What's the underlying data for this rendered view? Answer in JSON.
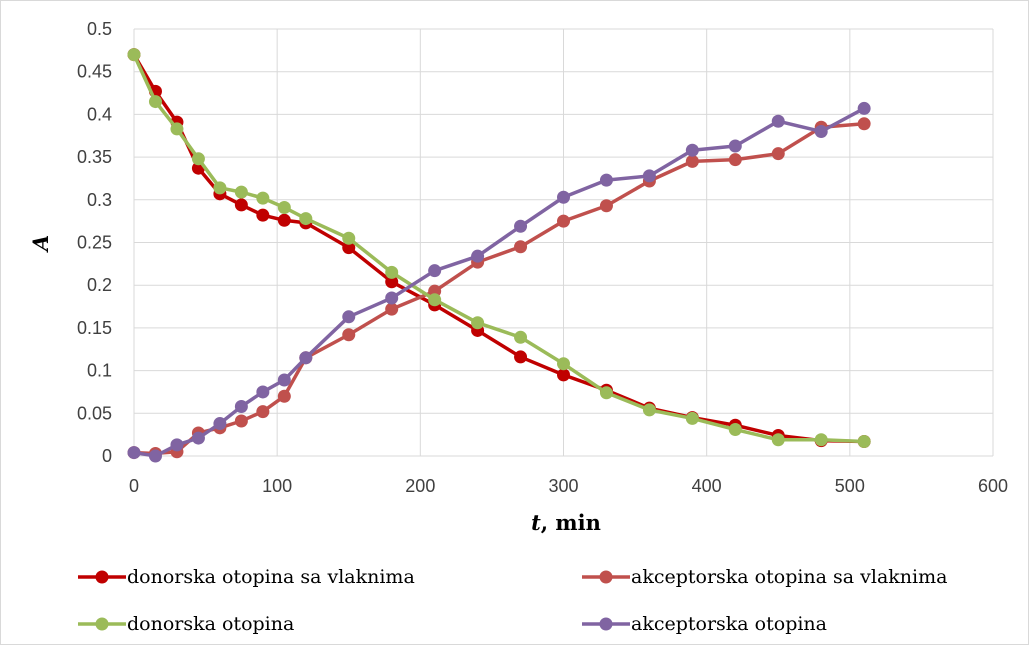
{
  "chart_data": {
    "type": "line",
    "title": "",
    "xlabel_italic": "t",
    "xlabel_rest": ", min",
    "ylabel": "A",
    "xlim": [
      0,
      600
    ],
    "ylim": [
      0,
      0.5
    ],
    "xticks": [
      0,
      100,
      200,
      300,
      400,
      500,
      600
    ],
    "yticks": [
      0,
      0.05,
      0.1,
      0.15,
      0.2,
      0.25,
      0.3,
      0.35,
      0.4,
      0.45,
      0.5
    ],
    "xtick_labels": [
      "0",
      "100",
      "200",
      "300",
      "400",
      "500",
      "600"
    ],
    "ytick_labels": [
      "0",
      "0.05",
      "0.1",
      "0.15",
      "0.2",
      "0.25",
      "0.3",
      "0.35",
      "0.4",
      "0.45",
      "0.5"
    ],
    "grid": true,
    "legend_position": "bottom",
    "series": [
      {
        "name": "donorska otopina sa vlaknima",
        "color": "#C00000",
        "x": [
          0,
          15,
          30,
          45,
          60,
          75,
          90,
          105,
          120,
          150,
          180,
          210,
          240,
          270,
          300,
          330,
          360,
          390,
          420,
          450,
          480,
          510
        ],
        "y": [
          0.47,
          0.427,
          0.391,
          0.337,
          0.307,
          0.294,
          0.282,
          0.276,
          0.273,
          0.244,
          0.204,
          0.177,
          0.147,
          0.116,
          0.095,
          0.077,
          0.056,
          0.045,
          0.036,
          0.024,
          0.018,
          0.017
        ]
      },
      {
        "name": "akceptorska otopina sa vlaknima",
        "color": "#C0504D",
        "x": [
          0,
          15,
          30,
          45,
          60,
          75,
          90,
          105,
          120,
          150,
          180,
          210,
          240,
          270,
          300,
          330,
          360,
          390,
          420,
          450,
          480,
          510
        ],
        "y": [
          0.004,
          0.003,
          0.005,
          0.027,
          0.033,
          0.041,
          0.052,
          0.07,
          0.115,
          0.142,
          0.172,
          0.193,
          0.227,
          0.245,
          0.275,
          0.293,
          0.322,
          0.345,
          0.347,
          0.354,
          0.385,
          0.389
        ]
      },
      {
        "name": "donorska otopina",
        "color": "#9BBB59",
        "x": [
          0,
          15,
          30,
          45,
          60,
          75,
          90,
          105,
          120,
          150,
          180,
          210,
          240,
          270,
          300,
          330,
          360,
          390,
          420,
          450,
          480,
          510
        ],
        "y": [
          0.47,
          0.415,
          0.383,
          0.348,
          0.314,
          0.309,
          0.302,
          0.291,
          0.278,
          0.255,
          0.215,
          0.183,
          0.156,
          0.139,
          0.108,
          0.074,
          0.054,
          0.044,
          0.031,
          0.019,
          0.019,
          0.017
        ]
      },
      {
        "name": "akceptorska otopina",
        "color": "#8064A2",
        "x": [
          0,
          15,
          30,
          45,
          60,
          75,
          90,
          105,
          120,
          150,
          180,
          210,
          240,
          270,
          300,
          330,
          360,
          390,
          420,
          450,
          480,
          510
        ],
        "y": [
          0.004,
          0.0,
          0.013,
          0.021,
          0.038,
          0.058,
          0.075,
          0.089,
          0.115,
          0.163,
          0.185,
          0.217,
          0.234,
          0.269,
          0.303,
          0.323,
          0.328,
          0.358,
          0.363,
          0.392,
          0.38,
          0.407
        ]
      }
    ]
  }
}
